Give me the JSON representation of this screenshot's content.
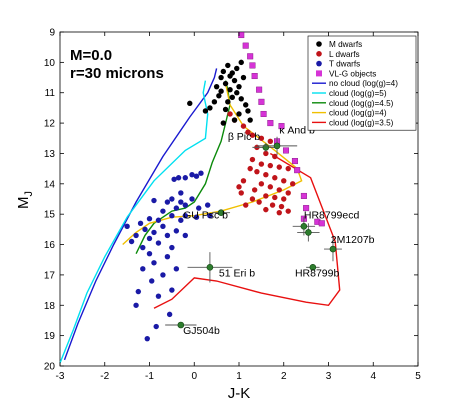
{
  "chart_data": {
    "type": "scatter",
    "xlabel": "J-K",
    "ylabel": "M_J",
    "xlim": [
      -3,
      5
    ],
    "ylim": [
      9,
      20
    ],
    "y_inverted": true,
    "x_ticks": [
      -3,
      -2,
      -1,
      0,
      1,
      2,
      3,
      4,
      5
    ],
    "y_ticks": [
      9,
      10,
      11,
      12,
      13,
      14,
      15,
      16,
      17,
      18,
      19,
      20
    ],
    "annotation_lines": [
      "M=0.0",
      "r=30 microns"
    ],
    "legend_position": "top-right",
    "legend": [
      {
        "label": "M dwarfs",
        "kind": "marker",
        "shape": "circle",
        "color": "#000000"
      },
      {
        "label": "L dwarfs",
        "kind": "marker",
        "shape": "circle",
        "color": "#c0141a"
      },
      {
        "label": "T dwarfs",
        "kind": "marker",
        "shape": "circle",
        "color": "#1a1aa6"
      },
      {
        "label": "VL-G objects",
        "kind": "marker",
        "shape": "square",
        "color": "#d633d6"
      },
      {
        "label": "no cloud (log(g)=4)",
        "kind": "line",
        "color": "#1a1ad0"
      },
      {
        "label": "cloud (log(g)=5)",
        "kind": "line",
        "color": "#00e0f0"
      },
      {
        "label": "cloud (log(g)=4.5)",
        "kind": "line",
        "color": "#0b8a0b"
      },
      {
        "label": "cloud (log(g)=4)",
        "kind": "line",
        "color": "#f0c000"
      },
      {
        "label": "cloud (log(g)=3.5)",
        "kind": "line",
        "color": "#e81010"
      }
    ],
    "model_tracks": [
      {
        "color": "#1a1ad0",
        "points": [
          [
            -2.9,
            19.8
          ],
          [
            -2.6,
            18.6
          ],
          [
            -2.2,
            17.2
          ],
          [
            -1.8,
            16.0
          ],
          [
            -1.3,
            14.6
          ],
          [
            -0.7,
            13.1
          ],
          [
            -0.1,
            11.8
          ],
          [
            0.3,
            11.0
          ],
          [
            0.45,
            10.5
          ],
          [
            0.5,
            10.2
          ]
        ]
      },
      {
        "color": "#00e0f0",
        "points": [
          [
            -3.0,
            19.9
          ],
          [
            -2.7,
            18.8
          ],
          [
            -2.4,
            17.6
          ],
          [
            -2.0,
            16.4
          ],
          [
            -1.5,
            15.1
          ],
          [
            -0.9,
            13.9
          ],
          [
            -0.2,
            12.9
          ],
          [
            0.25,
            12.5
          ],
          [
            0.3,
            11.7
          ],
          [
            0.2,
            11.0
          ],
          [
            0.25,
            10.6
          ]
        ]
      },
      {
        "color": "#0b8a0b",
        "points": [
          [
            -1.3,
            16.3
          ],
          [
            -1.1,
            15.7
          ],
          [
            -0.9,
            15.3
          ],
          [
            -0.7,
            15.1
          ],
          [
            -0.5,
            14.9
          ],
          [
            -0.2,
            14.8
          ],
          [
            0.0,
            14.6
          ],
          [
            0.25,
            14.0
          ],
          [
            0.4,
            13.3
          ],
          [
            0.6,
            12.6
          ],
          [
            0.7,
            12.0
          ],
          [
            0.8,
            11.4
          ],
          [
            0.75,
            10.9
          ],
          [
            0.7,
            10.6
          ]
        ]
      },
      {
        "color": "#f0c000",
        "points": [
          [
            -1.6,
            16.0
          ],
          [
            -1.3,
            15.6
          ],
          [
            -1.0,
            15.3
          ],
          [
            -0.5,
            15.1
          ],
          [
            0.0,
            15.05
          ],
          [
            0.6,
            14.9
          ],
          [
            1.3,
            14.6
          ],
          [
            2.0,
            14.2
          ],
          [
            2.4,
            13.9
          ],
          [
            2.3,
            13.5
          ],
          [
            1.8,
            12.9
          ],
          [
            1.1,
            12.1
          ],
          [
            0.8,
            11.4
          ],
          [
            0.7,
            10.7
          ]
        ]
      },
      {
        "color": "#e81010",
        "points": [
          [
            1.7,
            13.0
          ],
          [
            2.6,
            13.8
          ],
          [
            3.15,
            15.9
          ],
          [
            3.25,
            17.5
          ],
          [
            3.0,
            18.0
          ],
          [
            2.5,
            17.9
          ],
          [
            1.5,
            17.6
          ],
          [
            0.5,
            17.2
          ],
          [
            0.0,
            17.1
          ],
          [
            -0.5,
            17.8
          ],
          [
            -0.9,
            18.1
          ]
        ]
      }
    ],
    "series": [
      {
        "color": "#1a1aa6",
        "points": [
          [
            0.15,
            13.65
          ],
          [
            0.05,
            13.75
          ],
          [
            -0.05,
            13.7
          ],
          [
            -0.2,
            13.8
          ],
          [
            -0.35,
            13.8
          ],
          [
            -0.45,
            13.85
          ],
          [
            -0.3,
            14.3
          ],
          [
            -0.5,
            14.5
          ],
          [
            -0.9,
            14.55
          ],
          [
            -0.6,
            14.6
          ],
          [
            -0.3,
            14.6
          ],
          [
            -0.05,
            14.5
          ],
          [
            -0.2,
            14.7
          ],
          [
            0.1,
            14.8
          ],
          [
            0.3,
            14.7
          ],
          [
            -0.4,
            14.8
          ],
          [
            -0.7,
            14.9
          ],
          [
            -0.5,
            15.05
          ],
          [
            -0.2,
            15.05
          ],
          [
            0.05,
            15.1
          ],
          [
            0.35,
            15.05
          ],
          [
            -0.8,
            15.2
          ],
          [
            -1.0,
            15.15
          ],
          [
            -0.3,
            15.2
          ],
          [
            -1.2,
            15.3
          ],
          [
            -1.5,
            15.4
          ],
          [
            -0.7,
            15.4
          ],
          [
            -1.1,
            15.5
          ],
          [
            -0.4,
            15.55
          ],
          [
            -0.9,
            15.6
          ],
          [
            -1.3,
            15.7
          ],
          [
            -0.6,
            15.7
          ],
          [
            -1.0,
            15.8
          ],
          [
            -0.2,
            15.7
          ],
          [
            -1.4,
            15.9
          ],
          [
            -0.8,
            15.95
          ],
          [
            -1.15,
            16.1
          ],
          [
            -0.5,
            16.1
          ],
          [
            -1.0,
            16.3
          ],
          [
            -0.6,
            16.4
          ],
          [
            -0.9,
            16.6
          ],
          [
            -1.15,
            16.8
          ],
          [
            -0.4,
            16.8
          ],
          [
            -0.7,
            17.0
          ],
          [
            -0.95,
            17.2
          ],
          [
            -1.25,
            17.55
          ],
          [
            -0.5,
            17.5
          ],
          [
            -0.8,
            17.7
          ],
          [
            -1.3,
            18.0
          ],
          [
            -0.55,
            18.3
          ],
          [
            -0.85,
            18.7
          ],
          [
            -1.05,
            19.1
          ]
        ]
      },
      {
        "color": "#c0141a",
        "points": [
          [
            0.8,
            11.7
          ],
          [
            0.9,
            11.9
          ],
          [
            1.1,
            12.1
          ],
          [
            1.2,
            12.3
          ],
          [
            1.3,
            12.4
          ],
          [
            1.5,
            12.5
          ],
          [
            1.7,
            12.6
          ],
          [
            1.4,
            12.8
          ],
          [
            1.6,
            13.0
          ],
          [
            1.8,
            13.1
          ],
          [
            1.3,
            13.2
          ],
          [
            1.5,
            13.35
          ],
          [
            1.7,
            13.4
          ],
          [
            1.9,
            13.45
          ],
          [
            2.1,
            13.5
          ],
          [
            1.4,
            13.6
          ],
          [
            1.6,
            13.7
          ],
          [
            1.8,
            13.8
          ],
          [
            2.0,
            13.9
          ],
          [
            2.2,
            14.0
          ],
          [
            1.5,
            14.0
          ],
          [
            1.7,
            14.1
          ],
          [
            1.9,
            14.2
          ],
          [
            2.1,
            14.3
          ],
          [
            1.35,
            14.2
          ],
          [
            1.6,
            14.4
          ],
          [
            1.8,
            14.45
          ],
          [
            2.0,
            14.5
          ],
          [
            1.45,
            14.6
          ],
          [
            1.75,
            14.7
          ],
          [
            1.95,
            14.75
          ],
          [
            1.6,
            14.85
          ],
          [
            1.9,
            14.95
          ],
          [
            2.1,
            14.9
          ],
          [
            1.3,
            14.5
          ],
          [
            1.05,
            14.3
          ],
          [
            1.1,
            13.9
          ],
          [
            1.25,
            13.5
          ],
          [
            1.0,
            14.1
          ],
          [
            1.15,
            14.7
          ]
        ]
      },
      {
        "color": "#000000",
        "points": [
          [
            0.65,
            10.3
          ],
          [
            0.75,
            10.1
          ],
          [
            0.85,
            10.35
          ],
          [
            0.9,
            10.6
          ],
          [
            1.0,
            10.8
          ],
          [
            0.95,
            11.0
          ],
          [
            1.05,
            11.2
          ],
          [
            1.1,
            10.5
          ],
          [
            0.8,
            10.9
          ],
          [
            0.7,
            10.7
          ],
          [
            1.15,
            11.4
          ],
          [
            1.2,
            11.6
          ],
          [
            0.75,
            11.3
          ],
          [
            0.6,
            10.5
          ],
          [
            0.5,
            10.8
          ],
          [
            0.55,
            11.1
          ],
          [
            0.45,
            11.3
          ],
          [
            0.35,
            11.5
          ],
          [
            0.25,
            11.6
          ],
          [
            1.0,
            11.7
          ],
          [
            1.25,
            11.9
          ],
          [
            0.9,
            11.9
          ],
          [
            -0.1,
            11.35
          ],
          [
            0.65,
            12.0
          ],
          [
            0.95,
            10.2
          ],
          [
            1.05,
            10.0
          ],
          [
            0.8,
            10.45
          ],
          [
            0.6,
            10.95
          ],
          [
            0.85,
            11.15
          ],
          [
            0.7,
            11.55
          ]
        ]
      },
      {
        "color": "#d633d6",
        "points": [
          [
            1.05,
            9.1
          ],
          [
            1.15,
            9.45
          ],
          [
            1.25,
            9.8
          ],
          [
            1.3,
            10.1
          ],
          [
            1.35,
            10.45
          ],
          [
            1.45,
            10.9
          ],
          [
            1.5,
            11.3
          ],
          [
            1.55,
            11.7
          ],
          [
            1.7,
            12.0
          ],
          [
            1.95,
            12.1
          ],
          [
            1.85,
            12.6
          ],
          [
            2.05,
            12.9
          ],
          [
            2.25,
            13.25
          ],
          [
            2.3,
            13.55
          ],
          [
            2.45,
            14.4
          ],
          [
            2.5,
            14.8
          ],
          [
            2.45,
            15.15
          ],
          [
            2.75,
            15.25
          ],
          [
            2.85,
            15.3
          ]
        ]
      }
    ],
    "labeled_objects": [
      {
        "name": "β Pic b",
        "x": 1.6,
        "y": 12.8,
        "xerr": 0.3,
        "yerr": 0.15,
        "lx": 0.75,
        "ly": 12.55
      },
      {
        "name": "κ And b",
        "x": 1.85,
        "y": 12.75,
        "xerr": 0.45,
        "yerr": 0.3,
        "lx": 1.9,
        "ly": 12.35
      },
      {
        "name": "GU Psc b",
        "x": 0.6,
        "y": 14.95,
        "xerr": 0.2,
        "yerr": 0.1,
        "lx": -0.25,
        "ly": 15.15
      },
      {
        "name": "HR8799ecd",
        "x": 2.45,
        "y": 15.4,
        "xerr": 0.25,
        "yerr": 0.3,
        "lx": 2.45,
        "ly": 15.15
      },
      {
        "name": "HR8799ecd",
        "x": 2.55,
        "y": 15.6,
        "xerr": 0.25,
        "yerr": 0.3,
        "lx": null,
        "ly": null
      },
      {
        "name": "2M1207b",
        "x": 3.1,
        "y": 16.15,
        "xerr": 0.2,
        "yerr": 0.4,
        "lx": 3.05,
        "ly": 15.95
      },
      {
        "name": "HR8799b",
        "x": 2.65,
        "y": 16.75,
        "xerr": 0.15,
        "yerr": 0.1,
        "lx": 2.25,
        "ly": 17.05
      },
      {
        "name": "51 Eri b",
        "x": 0.35,
        "y": 16.75,
        "xerr": 0.5,
        "yerr": 0.5,
        "lx": 0.55,
        "ly": 17.05
      },
      {
        "name": "GJ504b",
        "x": -0.3,
        "y": 18.65,
        "xerr": 0.35,
        "yerr": 0.1,
        "lx": -0.25,
        "ly": 18.95
      }
    ]
  }
}
